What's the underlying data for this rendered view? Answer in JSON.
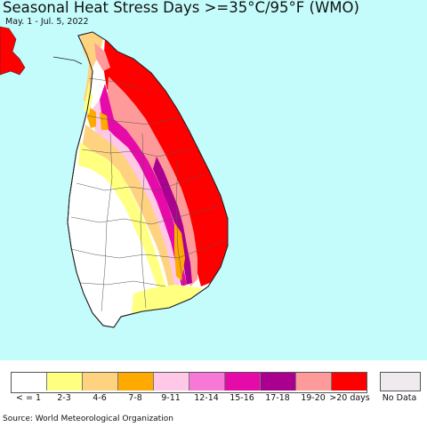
{
  "title": "Seasonal Heat Stress Days >=35°C/95°F (WMO)",
  "subtitle": "May. 1 - Jul. 5, 2022",
  "source": "Source: World Meteorological Organization",
  "colors": {
    "ocean": "#c4fcfb",
    "land_none": "#ffffff",
    "border": "#222222"
  },
  "legend": {
    "items": [
      {
        "label": "< = 1",
        "color": "#ffffff"
      },
      {
        "label": "2-3",
        "color": "#ffff80"
      },
      {
        "label": "4-6",
        "color": "#ffd280"
      },
      {
        "label": "7-8",
        "color": "#ffaa00"
      },
      {
        "label": "9-11",
        "color": "#ffc8e6"
      },
      {
        "label": "12-14",
        "color": "#f878d8"
      },
      {
        "label": "15-16",
        "color": "#e60aa8"
      },
      {
        "label": "17-18",
        "color": "#aa0090"
      },
      {
        "label": "19-20",
        "color": "#ff9a9a"
      },
      {
        "label": ">20 days",
        "color": "#ff0000"
      }
    ],
    "no_data": {
      "label": "No Data",
      "color": "#eeeaee"
    }
  }
}
